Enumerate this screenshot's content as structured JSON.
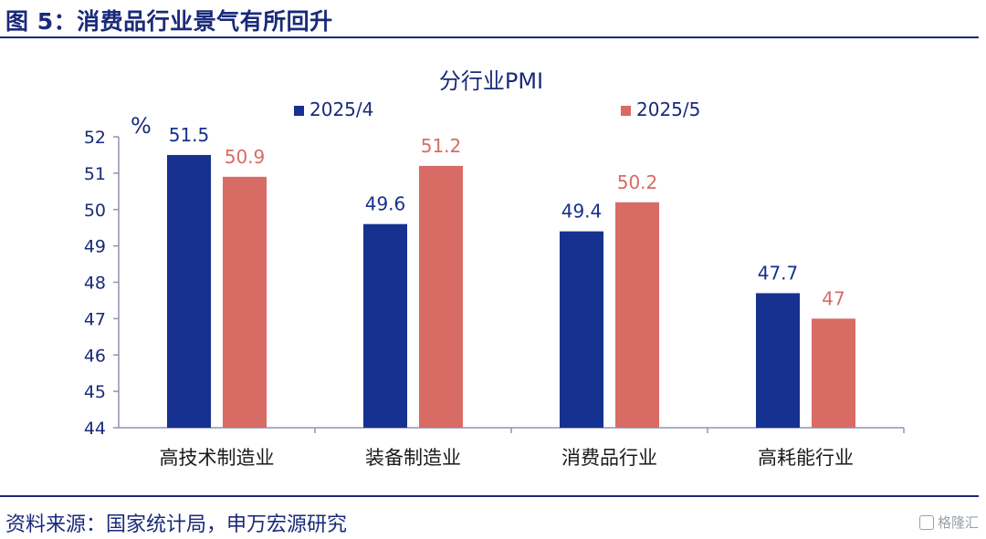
{
  "figure": {
    "title": "图 5：消费品行业景气有所回升",
    "source": "资料来源：国家统计局，申万宏源研究",
    "watermark": "格隆汇"
  },
  "chart_data": {
    "type": "bar",
    "title": "分行业PMI",
    "ylabel": "%",
    "xlabel": "",
    "ylim": [
      44,
      52
    ],
    "yticks": [
      44,
      45,
      46,
      47,
      48,
      49,
      50,
      51,
      52
    ],
    "categories": [
      "高技术制造业",
      "装备制造业",
      "消费品行业",
      "高耗能行业"
    ],
    "series": [
      {
        "name": "2025/4",
        "color": "#16318f",
        "values": [
          51.5,
          49.6,
          49.4,
          47.7
        ],
        "labels": [
          "51.5",
          "49.6",
          "49.4",
          "47.7"
        ]
      },
      {
        "name": "2025/5",
        "color": "#d96b65",
        "values": [
          50.9,
          51.2,
          50.2,
          47.0
        ],
        "labels": [
          "50.9",
          "51.2",
          "50.2",
          "47"
        ]
      }
    ],
    "legend_position": "top",
    "grid": false
  }
}
